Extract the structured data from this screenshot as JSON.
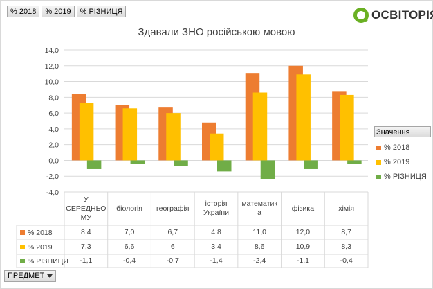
{
  "field_buttons": [
    "% 2018",
    "% 2019",
    "% РІЗНИЦЯ"
  ],
  "logo": {
    "text": "ОСВІТОРІЯ",
    "color": "#6ab023"
  },
  "legend": {
    "title": "Значення"
  },
  "bottom_button": {
    "label": "ПРЕДМЕТ"
  },
  "colors": {
    "s2018": "#ed7d31",
    "s2019": "#ffc000",
    "diff": "#70ad47"
  },
  "chart_data": {
    "type": "bar",
    "title": "Здавали ЗНО російською мовою",
    "categories": [
      "У СЕРЕДНЬОМУ",
      "біологія",
      "географія",
      "історія України",
      "математика",
      "фізика",
      "хімія"
    ],
    "category_lines": [
      [
        "У",
        "СЕРЕДНЬО",
        "МУ"
      ],
      [
        "біологія"
      ],
      [
        "географія"
      ],
      [
        "історія",
        "України"
      ],
      [
        "математик",
        "а"
      ],
      [
        "фізика"
      ],
      [
        "хімія"
      ]
    ],
    "series": [
      {
        "name": "% 2018",
        "values": [
          8.4,
          7.0,
          6.7,
          4.8,
          11.0,
          12.0,
          8.7
        ],
        "labels": [
          "8,4",
          "7,0",
          "6,7",
          "4,8",
          "11,0",
          "12,0",
          "8,7"
        ]
      },
      {
        "name": "% 2019",
        "values": [
          7.3,
          6.6,
          6.0,
          3.4,
          8.6,
          10.9,
          8.3
        ],
        "labels": [
          "7,3",
          "6,6",
          "6",
          "3,4",
          "8,6",
          "10,9",
          "8,3"
        ]
      },
      {
        "name": "% РІЗНИЦЯ",
        "values": [
          -1.1,
          -0.4,
          -0.7,
          -1.4,
          -2.4,
          -1.1,
          -0.4
        ],
        "labels": [
          "-1,1",
          "-0,4",
          "-0,7",
          "-1,4",
          "-2,4",
          "-1,1",
          "-0,4"
        ]
      }
    ],
    "y_ticks": [
      "14,0",
      "12,0",
      "10,0",
      "8,0",
      "6,0",
      "4,0",
      "2,0",
      "0,0",
      "-2,0",
      "-4,0"
    ],
    "ylim": [
      -4,
      14
    ],
    "legend_position": "right",
    "grid": true
  }
}
